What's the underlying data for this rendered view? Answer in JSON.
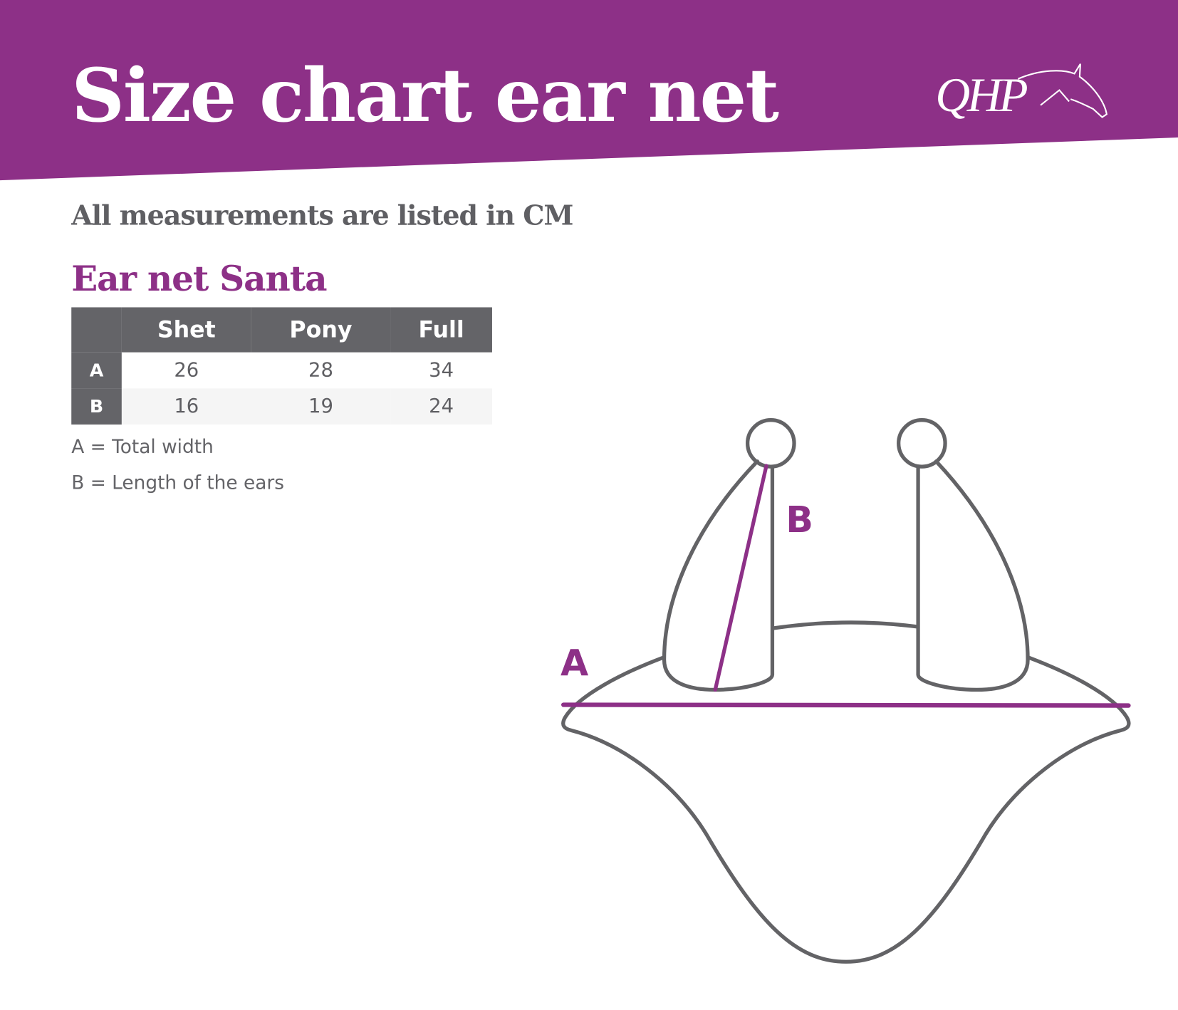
{
  "header": {
    "title": "Size chart ear net",
    "logo_text": "QHP"
  },
  "subtitle": "All measurements are listed in CM",
  "product_title": "Ear net Santa",
  "table": {
    "columns": [
      "",
      "Shet",
      "Pony",
      "Full"
    ],
    "rows": [
      {
        "label": "A",
        "values": [
          "26",
          "28",
          "34"
        ]
      },
      {
        "label": "B",
        "values": [
          "16",
          "19",
          "24"
        ]
      }
    ]
  },
  "legend": [
    "A = Total width",
    "B = Length of the ears"
  ],
  "diagram": {
    "label_a": "A",
    "label_b": "B"
  },
  "colors": {
    "brand_purple": "#8d3087",
    "table_header": "#646468",
    "text_gray": "#5f5f63",
    "outline": "#636366"
  }
}
